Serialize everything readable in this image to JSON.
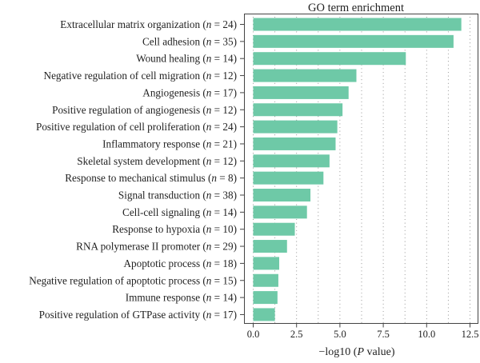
{
  "chart_data": {
    "type": "bar",
    "orientation": "horizontal",
    "title": "GO term enrichment",
    "xlabel": "−log10 (P value)",
    "ylabel": "",
    "xlim": [
      0,
      12.5
    ],
    "xticks": [
      "0.0",
      "2.5",
      "5.0",
      "7.5",
      "10.0",
      "12.5"
    ],
    "xtick_values": [
      0,
      2.5,
      5,
      7.5,
      10,
      12.5
    ],
    "grid": "dotted",
    "bar_color": "#6ec9a7",
    "categories": [
      {
        "term": "Extracellular matrix organization",
        "n": "24",
        "value": 12.0
      },
      {
        "term": "Cell adhesion",
        "n": "35",
        "value": 11.55
      },
      {
        "term": "Wound healing",
        "n": "14",
        "value": 8.8
      },
      {
        "term": "Negative regulation of cell migration",
        "n": "12",
        "value": 5.95
      },
      {
        "term": "Angiogenesis",
        "n": "17",
        "value": 5.5
      },
      {
        "term": "Positive regulation of angiogenesis",
        "n": "12",
        "value": 5.15
      },
      {
        "term": "Positive regulation of cell proliferation",
        "n": "24",
        "value": 4.85
      },
      {
        "term": "Inflammatory response",
        "n": "21",
        "value": 4.75
      },
      {
        "term": "Skeletal system development",
        "n": "12",
        "value": 4.4
      },
      {
        "term": "Response to mechanical stimulus",
        "n": "8",
        "value": 4.05
      },
      {
        "term": "Signal transduction",
        "n": "38",
        "value": 3.3
      },
      {
        "term": "Cell-cell signaling",
        "n": "14",
        "value": 3.1
      },
      {
        "term": "Response to hypoxia",
        "n": "10",
        "value": 2.4
      },
      {
        "term": "RNA polymerase II promoter",
        "n": "29",
        "value": 1.95
      },
      {
        "term": "Apoptotic process",
        "n": "18",
        "value": 1.5
      },
      {
        "term": "Negative regulation of apoptotic process",
        "n": "15",
        "value": 1.45
      },
      {
        "term": "Immune response",
        "n": "14",
        "value": 1.4
      },
      {
        "term": "Positive regulation of GTPase activity",
        "n": "17",
        "value": 1.25
      }
    ]
  }
}
